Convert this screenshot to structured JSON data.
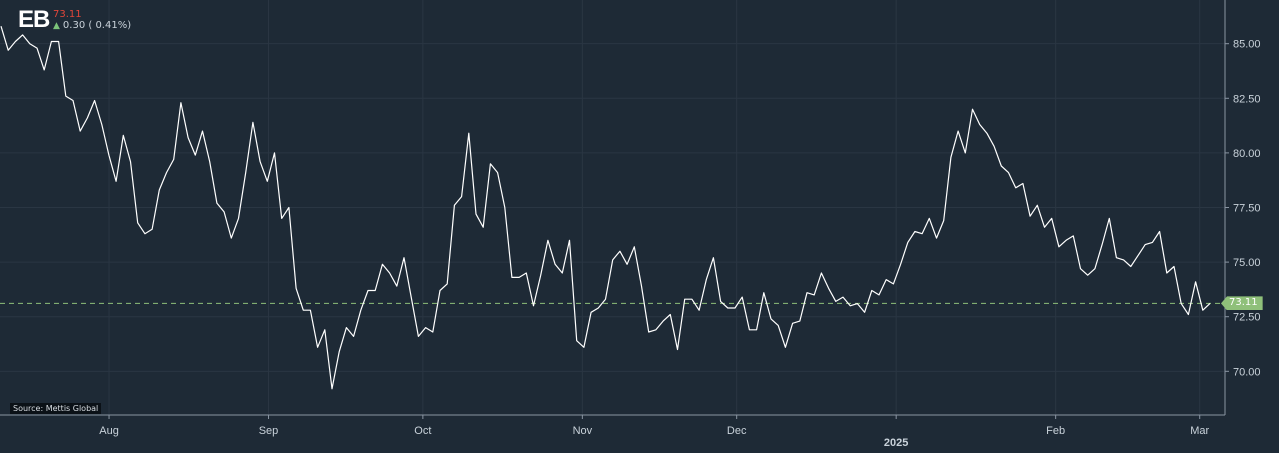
{
  "header": {
    "ticker": "EB",
    "price": "73.11",
    "change": "0.30 ( 0.41%)",
    "change_direction_icon": "arrow-up-icon",
    "up_color": "#7cc47a",
    "down_color": "#e0463a"
  },
  "source": "Source: Mettis Global",
  "colors": {
    "background": "#1e2a36",
    "line": "#ffffff",
    "grid": "#2a3643",
    "last_line": "#8fc07a"
  },
  "chart_data": {
    "type": "line",
    "ylim": [
      68,
      87
    ],
    "yticks": [
      "70.00",
      "72.50",
      "75.00",
      "77.50",
      "80.00",
      "82.50",
      "85.00"
    ],
    "xticks": [
      "Aug",
      "Sep",
      "Oct",
      "Nov",
      "Dec",
      "Feb",
      "Mar"
    ],
    "year_label": "2025",
    "last_value": "73.11",
    "series": [
      {
        "x_start": "2024-07-11",
        "x_end": "2025-03-03",
        "values": [
          85.8,
          84.7,
          85.1,
          85.4,
          85.0,
          84.8,
          83.8,
          85.1,
          85.1,
          82.6,
          82.4,
          81.0,
          81.6,
          82.4,
          81.3,
          79.9,
          78.7,
          80.8,
          79.6,
          76.8,
          76.3,
          76.5,
          78.3,
          79.1,
          79.7,
          82.3,
          80.7,
          79.9,
          81.0,
          79.6,
          77.7,
          77.3,
          76.1,
          77.0,
          79.1,
          81.4,
          79.6,
          78.7,
          80.0,
          77.0,
          77.5,
          73.8,
          72.8,
          72.8,
          71.1,
          71.9,
          69.2,
          70.9,
          72.0,
          71.6,
          72.8,
          73.7,
          73.7,
          74.9,
          74.5,
          73.9,
          75.2,
          73.4,
          71.6,
          72.0,
          71.8,
          73.7,
          74.0,
          77.6,
          78.0,
          80.9,
          77.2,
          76.6,
          79.5,
          79.1,
          77.5,
          74.3,
          74.3,
          74.5,
          73.0,
          74.4,
          76.0,
          74.9,
          74.5,
          76.0,
          71.4,
          71.1,
          72.7,
          72.9,
          73.3,
          75.1,
          75.5,
          74.9,
          75.7,
          73.9,
          71.8,
          71.9,
          72.3,
          72.6,
          71.0,
          73.3,
          73.3,
          72.8,
          74.2,
          75.2,
          73.2,
          72.9,
          72.9,
          73.4,
          71.9,
          71.9,
          73.6,
          72.4,
          72.1,
          71.1,
          72.2,
          72.3,
          73.6,
          73.5,
          74.5,
          73.8,
          73.2,
          73.4,
          73.0,
          73.1,
          72.7,
          73.7,
          73.5,
          74.2,
          74.0,
          74.9,
          75.9,
          76.4,
          76.3,
          77.0,
          76.1,
          76.9,
          79.8,
          81.0,
          80.0,
          82.0,
          81.3,
          80.9,
          80.3,
          79.4,
          79.1,
          78.4,
          78.6,
          77.1,
          77.6,
          76.6,
          77.0,
          75.7,
          76.0,
          76.2,
          74.7,
          74.4,
          74.7,
          75.8,
          77.0,
          75.2,
          75.1,
          74.8,
          75.3,
          75.8,
          75.9,
          76.4,
          74.5,
          74.8,
          73.1,
          72.6,
          74.1,
          72.8,
          73.11
        ]
      }
    ]
  }
}
